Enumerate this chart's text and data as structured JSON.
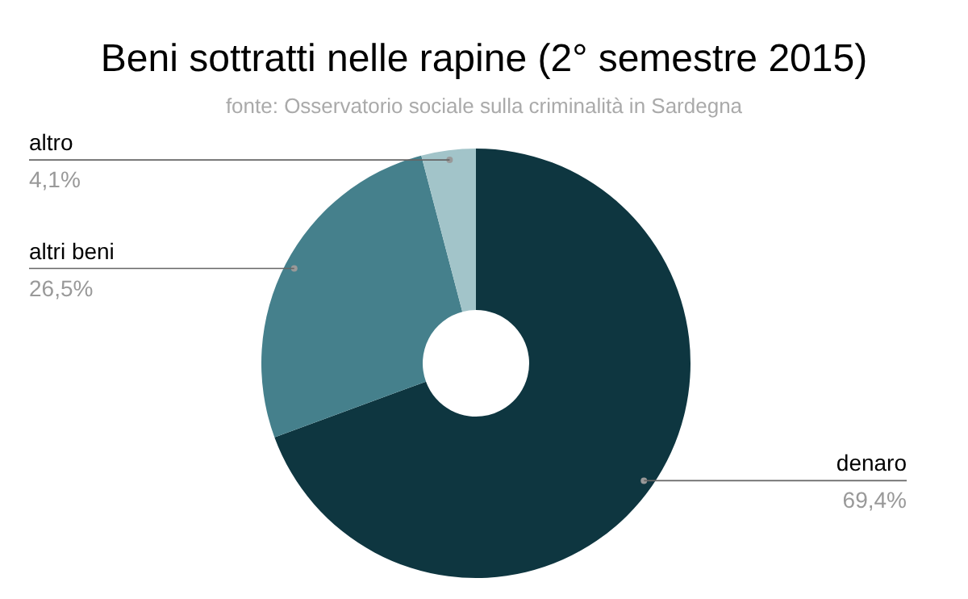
{
  "chart_data": {
    "type": "donut",
    "title": "Beni sottratti nelle rapine (2° semestre 2015)",
    "subtitle": "fonte: Osservatorio sociale sulla criminalità in Sardegna",
    "categories": [
      "denaro",
      "altri beni",
      "altro"
    ],
    "values": [
      69.4,
      26.5,
      4.1
    ],
    "colors": [
      "#0e3640",
      "#45808c",
      "#a2c4c9"
    ],
    "value_labels": [
      "69,4%",
      "26,5%",
      "4,1%"
    ]
  }
}
